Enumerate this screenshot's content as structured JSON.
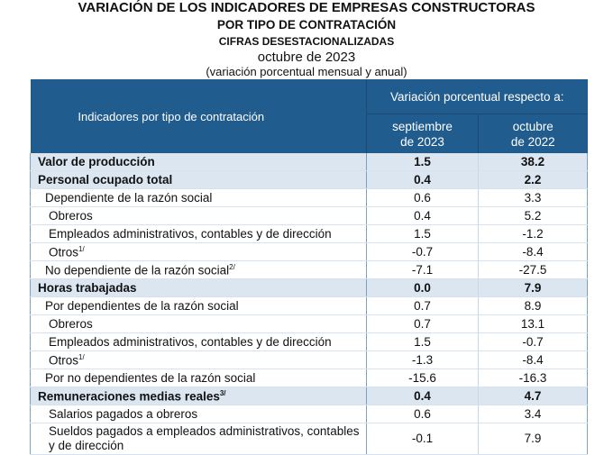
{
  "title": {
    "line1": "VARIACIÓN DE LOS INDICADORES DE EMPRESAS CONSTRUCTORAS",
    "line2": "POR TIPO DE CONTRATACIÓN",
    "line3": "CIFRAS DESESTACIONALIZADAS",
    "period": "octubre de 2023",
    "note": "(variación porcentual mensual y anual)"
  },
  "table": {
    "header": {
      "indicator": "Indicadores por tipo de contratación",
      "group": "Variación porcentual respecto a:",
      "col1_line1": "septiembre",
      "col1_line2": "de 2023",
      "col2_line1": "octubre",
      "col2_line2": "de 2022"
    },
    "rows": [
      {
        "label": "Valor de producción",
        "sup": "",
        "monthly": "1.5",
        "annual": "38.2"
      },
      {
        "label": "Personal ocupado total",
        "sup": "",
        "monthly": "0.4",
        "annual": "2.2"
      },
      {
        "label": "Dependiente de la razón social",
        "sup": "",
        "monthly": "0.6",
        "annual": "3.3"
      },
      {
        "label": "Obreros",
        "sup": "",
        "monthly": "0.4",
        "annual": "5.2"
      },
      {
        "label": "Empleados administrativos, contables y de dirección",
        "sup": "",
        "monthly": "1.5",
        "annual": "-1.2"
      },
      {
        "label": "Otros",
        "sup": "1/",
        "monthly": "-0.7",
        "annual": "-8.4"
      },
      {
        "label": "No dependiente de la razón social",
        "sup": "2/",
        "monthly": "-7.1",
        "annual": "-27.5"
      },
      {
        "label": "Horas trabajadas",
        "sup": "",
        "monthly": "0.0",
        "annual": "7.9"
      },
      {
        "label": "Por dependientes de la razón social",
        "sup": "",
        "monthly": "0.7",
        "annual": "8.9"
      },
      {
        "label": "Obreros",
        "sup": "",
        "monthly": "0.7",
        "annual": "13.1"
      },
      {
        "label": "Empleados administrativos, contables y de dirección",
        "sup": "",
        "monthly": "1.5",
        "annual": "-0.7"
      },
      {
        "label": "Otros",
        "sup": "1/",
        "monthly": "-1.3",
        "annual": "-8.4"
      },
      {
        "label": "Por no dependientes de la razón social",
        "sup": "",
        "monthly": "-15.6",
        "annual": "-16.3"
      },
      {
        "label": "Remuneraciones medias reales",
        "sup": "3/",
        "monthly": "0.4",
        "annual": "4.7"
      },
      {
        "label": "Salarios pagados a obreros",
        "sup": "",
        "monthly": "0.6",
        "annual": "3.4"
      },
      {
        "label": "Sueldos pagados a empleados administrativos, contables y de dirección",
        "sup": "",
        "monthly": "-0.1",
        "annual": "7.9"
      }
    ]
  },
  "colors": {
    "header_bg": "#215c8e",
    "section_row_bg": "#dbe6f1"
  }
}
